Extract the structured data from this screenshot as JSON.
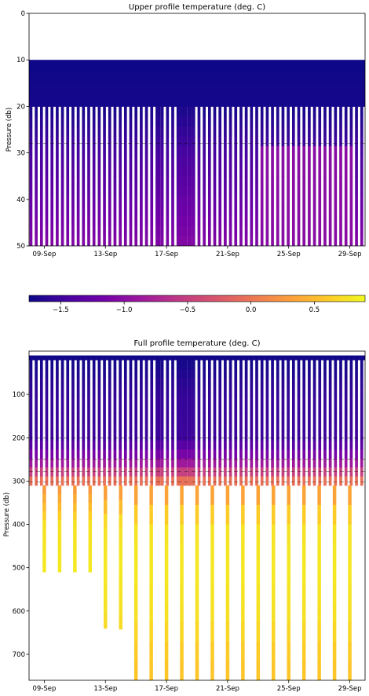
{
  "colors": {
    "colormap": "plasma",
    "background": "#ffffff",
    "contour": "#000000",
    "stops": [
      "#0d0887",
      "#46039f",
      "#7201a8",
      "#9c179e",
      "#bd3786",
      "#d8576b",
      "#ed7953",
      "#fb9f3a",
      "#fdca26",
      "#f0f921"
    ]
  },
  "chart_data": [
    {
      "type": "heatmap",
      "title": "Upper profile temperature (deg. C)",
      "xlabel": "",
      "ylabel": "Pressure (db)",
      "x_tick_labels": [
        "09-Sep",
        "13-Sep",
        "17-Sep",
        "21-Sep",
        "25-Sep",
        "29-Sep"
      ],
      "y_ticks": [
        0,
        10,
        20,
        30,
        40,
        50
      ],
      "ylim": [
        50,
        0
      ],
      "xlim": [
        "2021-09-08",
        "2021-09-30"
      ],
      "y_axis_inverted": true,
      "data_pressure_range": [
        10,
        50
      ],
      "solid_band_pressure": [
        10,
        20
      ],
      "profile_count": 64,
      "gap_profiles": [
        24,
        28,
        29,
        30
      ],
      "temperature_by_pressure": [
        {
          "pressure": 10,
          "temp": -1.75
        },
        {
          "pressure": 20,
          "temp": -1.7
        },
        {
          "pressure": 30,
          "temp": -1.45
        },
        {
          "pressure": 40,
          "temp": -1.25
        },
        {
          "pressure": 50,
          "temp": -1.05
        }
      ],
      "warm_patch": {
        "date_range": [
          "2021-09-23",
          "2021-09-29"
        ],
        "pressure_range": [
          27,
          50
        ],
        "temp": -1.0
      }
    },
    {
      "type": "colorbar",
      "cmap": "plasma",
      "range": [
        -1.75,
        0.9
      ],
      "ticks": [
        -1.5,
        -1.0,
        -0.5,
        0.0,
        0.5
      ],
      "tick_labels": [
        "−1.5",
        "−1.0",
        "−0.5",
        "0.0",
        "0.5"
      ]
    },
    {
      "type": "heatmap",
      "title": "Full profile temperature (deg. C)",
      "xlabel": "",
      "ylabel": "Pressure (db)",
      "x_tick_labels": [
        "09-Sep",
        "13-Sep",
        "17-Sep",
        "21-Sep",
        "25-Sep",
        "29-Sep"
      ],
      "y_ticks": [
        100,
        200,
        300,
        400,
        500,
        600,
        700
      ],
      "ylim": [
        760,
        0
      ],
      "xlim": [
        "2021-09-08",
        "2021-09-30"
      ],
      "y_axis_inverted": true,
      "upper_pressure_range": [
        10,
        310
      ],
      "solid_band_pressure": [
        10,
        20
      ],
      "profile_count": 64,
      "gap_profiles": [
        24,
        28,
        29,
        30
      ],
      "temperature_by_pressure": [
        {
          "pressure": 10,
          "temp": -1.75
        },
        {
          "pressure": 100,
          "temp": -1.55
        },
        {
          "pressure": 200,
          "temp": -1.5
        },
        {
          "pressure": 250,
          "temp": -1.0
        },
        {
          "pressure": 290,
          "temp": -0.3
        },
        {
          "pressure": 310,
          "temp": 0.2
        },
        {
          "pressure": 400,
          "temp": 0.75
        },
        {
          "pressure": 500,
          "temp": 0.8
        },
        {
          "pressure": 600,
          "temp": 0.75
        },
        {
          "pressure": 700,
          "temp": 0.6
        },
        {
          "pressure": 760,
          "temp": 0.55
        }
      ],
      "deep_profiles": [
        {
          "date": "2021-09-09",
          "max_pressure": 510
        },
        {
          "date": "2021-09-10",
          "max_pressure": 510
        },
        {
          "date": "2021-09-11",
          "max_pressure": 510
        },
        {
          "date": "2021-09-12",
          "max_pressure": 510
        },
        {
          "date": "2021-09-13",
          "max_pressure": 640
        },
        {
          "date": "2021-09-14",
          "max_pressure": 642
        },
        {
          "date": "2021-09-15",
          "max_pressure": 760
        },
        {
          "date": "2021-09-16",
          "max_pressure": 760
        },
        {
          "date": "2021-09-17",
          "max_pressure": 760
        },
        {
          "date": "2021-09-18",
          "max_pressure": 760
        },
        {
          "date": "2021-09-19",
          "max_pressure": 760
        },
        {
          "date": "2021-09-20",
          "max_pressure": 760
        },
        {
          "date": "2021-09-21",
          "max_pressure": 760
        },
        {
          "date": "2021-09-22",
          "max_pressure": 760
        },
        {
          "date": "2021-09-23",
          "max_pressure": 760
        },
        {
          "date": "2021-09-24",
          "max_pressure": 760
        },
        {
          "date": "2021-09-25",
          "max_pressure": 760
        },
        {
          "date": "2021-09-26",
          "max_pressure": 760
        },
        {
          "date": "2021-09-27",
          "max_pressure": 760
        },
        {
          "date": "2021-09-28",
          "max_pressure": 760
        },
        {
          "date": "2021-09-29",
          "max_pressure": 760
        }
      ]
    }
  ]
}
